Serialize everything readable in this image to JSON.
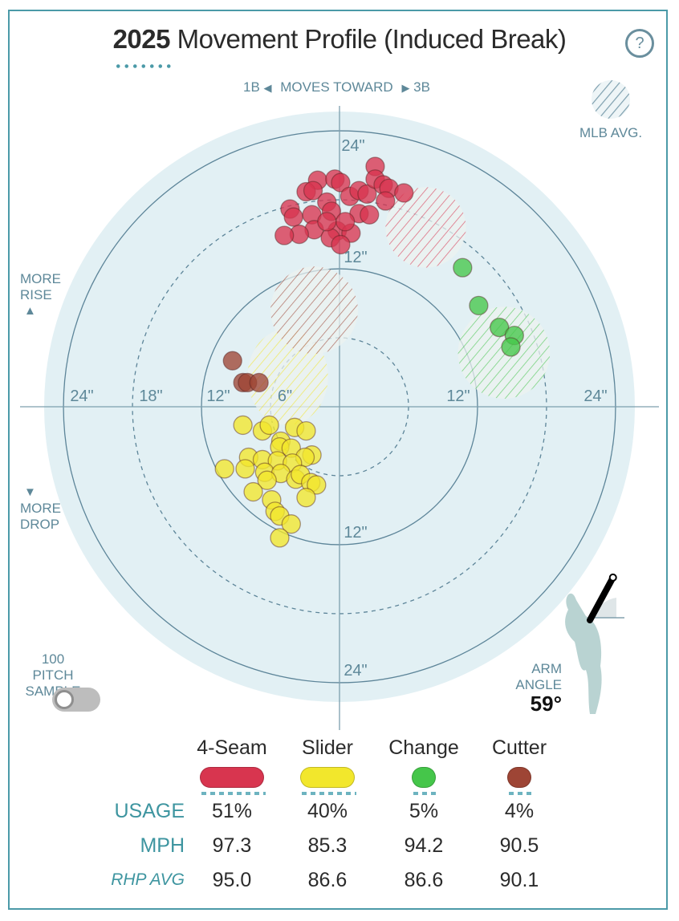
{
  "header": {
    "year": "2025",
    "title_rest": "Movement Profile (Induced Break)",
    "help_label": "?"
  },
  "direction": {
    "left": "1B",
    "middle": "MOVES TOWARD",
    "right": "3B"
  },
  "legend_avg_label": "MLB AVG.",
  "rise_label": [
    "MORE",
    "RISE"
  ],
  "drop_label": [
    "MORE",
    "DROP"
  ],
  "sample_toggle": {
    "label": [
      "100 PITCH",
      "SAMPLE"
    ],
    "on": false
  },
  "arm_angle": {
    "label": [
      "ARM",
      "ANGLE"
    ],
    "value": "59°",
    "degrees": 59
  },
  "colors": {
    "frame": "#4b9aa8",
    "plot_bg": "#e2f0f4",
    "ring": "#5d8599",
    "4-Seam": "#d8354f",
    "Slider": "#f2e72c",
    "Change": "#45c64a",
    "Cutter": "#9e4535"
  },
  "chart_data": {
    "type": "scatter",
    "title": "2025 Movement Profile (Induced Break)",
    "units": "inches",
    "rings": [
      6,
      12,
      18,
      24
    ],
    "ring_labels": {
      "top": [
        "24\"",
        "12\""
      ],
      "bottom": [
        "12\"",
        "24\""
      ],
      "left": [
        "24\"",
        "18\"",
        "12\"",
        "6\""
      ],
      "right": [
        "12\"",
        "24\""
      ]
    },
    "series": [
      {
        "name": "4-Seam",
        "points": [
          [
            3.1,
            20.9
          ],
          [
            -1.9,
            19.7
          ],
          [
            -0.4,
            19.8
          ],
          [
            0.1,
            19.5
          ],
          [
            -2.9,
            18.7
          ],
          [
            -2.3,
            18.8
          ],
          [
            0.9,
            18.3
          ],
          [
            1.7,
            18.8
          ],
          [
            2.4,
            18.5
          ],
          [
            3.1,
            19.8
          ],
          [
            3.8,
            19.3
          ],
          [
            4.3,
            19.0
          ],
          [
            5.6,
            18.6
          ],
          [
            4.0,
            17.9
          ],
          [
            -4.3,
            17.2
          ],
          [
            -4.0,
            16.5
          ],
          [
            -2.4,
            16.7
          ],
          [
            -1.1,
            17.8
          ],
          [
            -0.7,
            17.0
          ],
          [
            1.7,
            16.8
          ],
          [
            2.6,
            16.7
          ],
          [
            -2.2,
            15.4
          ],
          [
            -3.5,
            15.0
          ],
          [
            -4.8,
            14.9
          ],
          [
            -0.2,
            15.3
          ],
          [
            1.0,
            15.1
          ],
          [
            -0.8,
            14.7
          ],
          [
            0.1,
            14.1
          ],
          [
            0.5,
            16.1
          ],
          [
            -1.1,
            16.1
          ]
        ],
        "avg": {
          "x": 7.5,
          "y": 15.6,
          "rx": 3.5,
          "ry": 3.5
        }
      },
      {
        "name": "Slider",
        "points": [
          [
            -8.4,
            -1.6
          ],
          [
            -6.7,
            -2.1
          ],
          [
            -6.1,
            -1.6
          ],
          [
            -3.9,
            -1.8
          ],
          [
            -2.9,
            -2.1
          ],
          [
            -5.1,
            -3.0
          ],
          [
            -5.2,
            -3.5
          ],
          [
            -4.2,
            -3.6
          ],
          [
            -2.4,
            -4.2
          ],
          [
            -3.0,
            -4.4
          ],
          [
            -7.9,
            -4.4
          ],
          [
            -6.7,
            -4.6
          ],
          [
            -5.4,
            -4.7
          ],
          [
            -4.1,
            -4.9
          ],
          [
            -10.0,
            -5.4
          ],
          [
            -8.2,
            -5.4
          ],
          [
            -6.5,
            -5.7
          ],
          [
            -5.1,
            -5.8
          ],
          [
            -3.8,
            -6.3
          ],
          [
            -3.4,
            -5.9
          ],
          [
            -2.5,
            -6.6
          ],
          [
            -2.0,
            -6.8
          ],
          [
            -6.3,
            -6.4
          ],
          [
            -7.5,
            -7.4
          ],
          [
            -5.9,
            -8.1
          ],
          [
            -2.9,
            -7.9
          ],
          [
            -5.6,
            -9.1
          ],
          [
            -5.2,
            -9.5
          ],
          [
            -4.2,
            -10.2
          ],
          [
            -5.2,
            -11.4
          ]
        ],
        "avg": {
          "x": -4.5,
          "y": 2.6,
          "rx": 3.5,
          "ry": 4.2
        }
      },
      {
        "name": "Change",
        "points": [
          [
            10.7,
            12.1
          ],
          [
            12.1,
            8.8
          ],
          [
            13.9,
            6.9
          ],
          [
            15.2,
            6.2
          ],
          [
            14.9,
            5.2
          ]
        ],
        "avg": {
          "x": 14.3,
          "y": 4.7,
          "rx": 4.0,
          "ry": 4.0
        }
      },
      {
        "name": "Cutter",
        "points": [
          [
            -9.3,
            4.0
          ],
          [
            -8.4,
            2.1
          ],
          [
            -8.0,
            2.1
          ],
          [
            -7.0,
            2.1
          ]
        ],
        "avg": {
          "x": -2.2,
          "y": 8.4,
          "rx": 3.8,
          "ry": 3.8
        }
      }
    ]
  },
  "table": {
    "row_labels": {
      "usage": "USAGE",
      "mph": "MPH",
      "rhp": "RHP AVG"
    },
    "columns": [
      {
        "name": "4-Seam",
        "usage": "51%",
        "mph": "97.3",
        "rhp_avg": "95.0"
      },
      {
        "name": "Slider",
        "usage": "40%",
        "mph": "85.3",
        "rhp_avg": "86.6"
      },
      {
        "name": "Change",
        "usage": "5%",
        "mph": "94.2",
        "rhp_avg": "86.6"
      },
      {
        "name": "Cutter",
        "usage": "4%",
        "mph": "90.5",
        "rhp_avg": "90.1"
      }
    ]
  }
}
